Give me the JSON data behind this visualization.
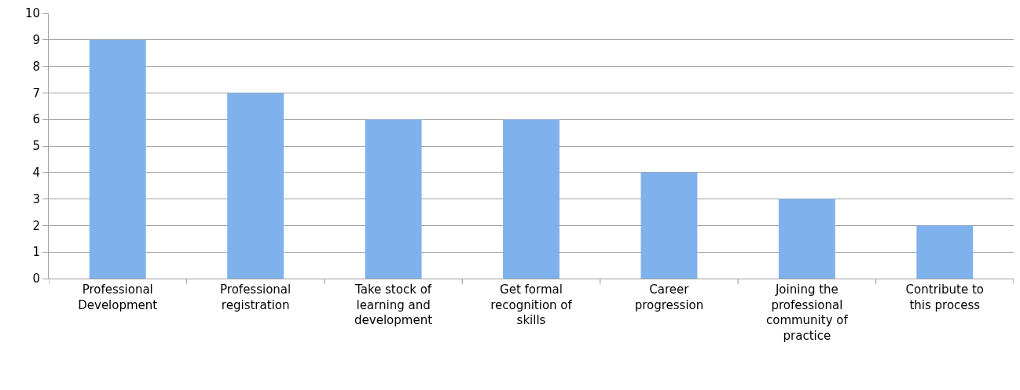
{
  "chart_data": {
    "type": "bar",
    "categories": [
      "Professional Development",
      "Professional registration",
      "Take stock of learning and development",
      "Get formal recognition of skills",
      "Career progression",
      "Joining the professional community of practice",
      "Contribute to this process"
    ],
    "values": [
      9,
      7,
      6,
      6,
      4,
      3,
      2
    ],
    "color": "#7fb2ec",
    "ylim": [
      0,
      10
    ],
    "yticks": [
      0,
      1,
      2,
      3,
      4,
      5,
      6,
      7,
      8,
      9,
      10
    ],
    "grid": "y",
    "legend": false
  }
}
